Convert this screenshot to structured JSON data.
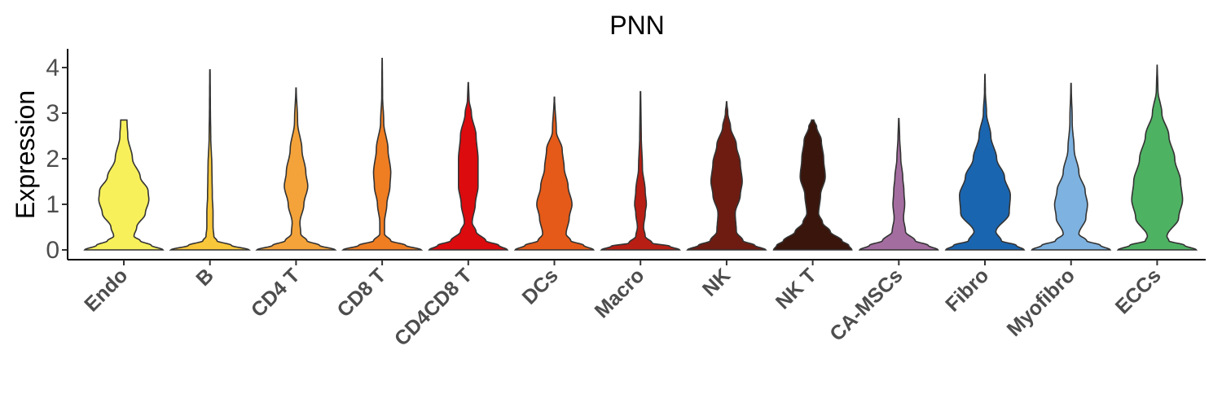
{
  "chart_data": {
    "type": "violin",
    "title": "PNN",
    "ylabel": "Expression",
    "xlabel": "",
    "ylim": [
      -0.2,
      4.4
    ],
    "yticks": [
      "0",
      "1",
      "2",
      "3",
      "4"
    ],
    "grid": false,
    "legend": "none",
    "categories": [
      "Endo",
      "B",
      "CD4 T",
      "CD8 T",
      "CD4CD8 T",
      "DCs",
      "Macro",
      "NK",
      "NK T",
      "CA-MSCs",
      "Fibro",
      "Myofibro",
      "ECCs"
    ],
    "series": [
      {
        "category": "Endo",
        "color": "#F7F05A",
        "max": 2.85,
        "profile": [
          [
            0,
            1.0
          ],
          [
            0.1,
            0.7
          ],
          [
            0.2,
            0.42
          ],
          [
            0.3,
            0.26
          ],
          [
            0.5,
            0.33
          ],
          [
            0.8,
            0.55
          ],
          [
            1.1,
            0.64
          ],
          [
            1.3,
            0.62
          ],
          [
            1.6,
            0.42
          ],
          [
            2.0,
            0.22
          ],
          [
            2.5,
            0.1
          ],
          [
            2.85,
            0.08
          ]
        ]
      },
      {
        "category": "B",
        "color": "#F9C73A",
        "max": 3.95,
        "profile": [
          [
            0,
            1.0
          ],
          [
            0.1,
            0.55
          ],
          [
            0.2,
            0.18
          ],
          [
            0.3,
            0.1
          ],
          [
            0.5,
            0.08
          ],
          [
            0.8,
            0.08
          ],
          [
            1.2,
            0.06
          ],
          [
            1.8,
            0.05
          ],
          [
            2.5,
            0.02
          ],
          [
            3.2,
            0.01
          ],
          [
            3.95,
            0.005
          ]
        ]
      },
      {
        "category": "CD4 T",
        "color": "#F4A33A",
        "max": 3.55,
        "profile": [
          [
            0,
            1.0
          ],
          [
            0.1,
            0.6
          ],
          [
            0.2,
            0.28
          ],
          [
            0.35,
            0.12
          ],
          [
            0.6,
            0.1
          ],
          [
            1.0,
            0.2
          ],
          [
            1.4,
            0.3
          ],
          [
            1.7,
            0.25
          ],
          [
            2.2,
            0.15
          ],
          [
            2.8,
            0.04
          ],
          [
            3.55,
            0.005
          ]
        ]
      },
      {
        "category": "CD8 T",
        "color": "#EF7D22",
        "max": 4.2,
        "profile": [
          [
            0,
            1.0
          ],
          [
            0.1,
            0.6
          ],
          [
            0.2,
            0.22
          ],
          [
            0.35,
            0.06
          ],
          [
            0.6,
            0.06
          ],
          [
            1.0,
            0.12
          ],
          [
            1.4,
            0.2
          ],
          [
            1.7,
            0.22
          ],
          [
            2.2,
            0.15
          ],
          [
            2.8,
            0.04
          ],
          [
            3.4,
            0.01
          ],
          [
            4.2,
            0.003
          ]
        ]
      },
      {
        "category": "CD4CD8 T",
        "color": "#DC0B0E",
        "max": 3.67,
        "profile": [
          [
            0,
            1.0
          ],
          [
            0.1,
            0.78
          ],
          [
            0.2,
            0.45
          ],
          [
            0.4,
            0.2
          ],
          [
            0.6,
            0.1
          ],
          [
            1.0,
            0.18
          ],
          [
            1.4,
            0.25
          ],
          [
            2.0,
            0.25
          ],
          [
            2.5,
            0.2
          ],
          [
            3.0,
            0.08
          ],
          [
            3.3,
            0.02
          ],
          [
            3.67,
            0.005
          ]
        ]
      },
      {
        "category": "DCs",
        "color": "#E55A18",
        "max": 3.35,
        "profile": [
          [
            0,
            1.0
          ],
          [
            0.1,
            0.75
          ],
          [
            0.2,
            0.42
          ],
          [
            0.35,
            0.3
          ],
          [
            0.7,
            0.38
          ],
          [
            1.0,
            0.45
          ],
          [
            1.4,
            0.35
          ],
          [
            1.8,
            0.25
          ],
          [
            2.2,
            0.2
          ],
          [
            2.6,
            0.05
          ],
          [
            3.35,
            0.005
          ]
        ]
      },
      {
        "category": "Macro",
        "color": "#B81E14",
        "max": 3.47,
        "profile": [
          [
            0,
            1.0
          ],
          [
            0.08,
            0.75
          ],
          [
            0.15,
            0.3
          ],
          [
            0.3,
            0.12
          ],
          [
            0.5,
            0.08
          ],
          [
            0.8,
            0.12
          ],
          [
            1.0,
            0.15
          ],
          [
            1.3,
            0.12
          ],
          [
            1.8,
            0.05
          ],
          [
            2.5,
            0.02
          ],
          [
            3.47,
            0.005
          ]
        ]
      },
      {
        "category": "NK",
        "color": "#6E1C12",
        "max": 3.25,
        "profile": [
          [
            0,
            1.0
          ],
          [
            0.1,
            0.72
          ],
          [
            0.2,
            0.42
          ],
          [
            0.4,
            0.25
          ],
          [
            0.8,
            0.22
          ],
          [
            1.2,
            0.35
          ],
          [
            1.5,
            0.4
          ],
          [
            1.9,
            0.35
          ],
          [
            2.3,
            0.25
          ],
          [
            2.7,
            0.1
          ],
          [
            3.0,
            0.03
          ],
          [
            3.25,
            0.005
          ]
        ]
      },
      {
        "category": "NK T",
        "color": "#3A150C",
        "max": 2.85,
        "profile": [
          [
            0,
            1.0
          ],
          [
            0.1,
            0.92
          ],
          [
            0.2,
            0.75
          ],
          [
            0.4,
            0.45
          ],
          [
            0.6,
            0.25
          ],
          [
            0.8,
            0.15
          ],
          [
            1.2,
            0.2
          ],
          [
            1.6,
            0.32
          ],
          [
            2.0,
            0.28
          ],
          [
            2.4,
            0.22
          ],
          [
            2.7,
            0.1
          ],
          [
            2.85,
            0.03
          ]
        ]
      },
      {
        "category": "CA-MSCs",
        "color": "#A46DA0",
        "max": 2.88,
        "profile": [
          [
            0,
            1.0
          ],
          [
            0.1,
            0.75
          ],
          [
            0.2,
            0.42
          ],
          [
            0.4,
            0.17
          ],
          [
            0.7,
            0.12
          ],
          [
            1.0,
            0.15
          ],
          [
            1.3,
            0.13
          ],
          [
            1.6,
            0.1
          ],
          [
            2.0,
            0.05
          ],
          [
            2.5,
            0.02
          ],
          [
            2.88,
            0.005
          ]
        ]
      },
      {
        "category": "Fibro",
        "color": "#1A65B0",
        "max": 3.85,
        "profile": [
          [
            0,
            1.0
          ],
          [
            0.1,
            0.8
          ],
          [
            0.2,
            0.42
          ],
          [
            0.4,
            0.28
          ],
          [
            0.8,
            0.62
          ],
          [
            1.2,
            0.65
          ],
          [
            1.6,
            0.5
          ],
          [
            2.0,
            0.3
          ],
          [
            2.5,
            0.15
          ],
          [
            3.0,
            0.04
          ],
          [
            3.5,
            0.01
          ],
          [
            3.85,
            0.003
          ]
        ]
      },
      {
        "category": "Myofibro",
        "color": "#7EB2E0",
        "max": 3.65,
        "profile": [
          [
            0,
            1.0
          ],
          [
            0.1,
            0.75
          ],
          [
            0.2,
            0.4
          ],
          [
            0.35,
            0.2
          ],
          [
            0.7,
            0.38
          ],
          [
            1.0,
            0.42
          ],
          [
            1.3,
            0.36
          ],
          [
            1.7,
            0.2
          ],
          [
            2.2,
            0.08
          ],
          [
            2.8,
            0.03
          ],
          [
            3.65,
            0.005
          ]
        ]
      },
      {
        "category": "ECCs",
        "color": "#4EB263",
        "max": 4.05,
        "profile": [
          [
            0,
            1.0
          ],
          [
            0.1,
            0.7
          ],
          [
            0.2,
            0.3
          ],
          [
            0.3,
            0.25
          ],
          [
            0.7,
            0.55
          ],
          [
            1.1,
            0.65
          ],
          [
            1.5,
            0.6
          ],
          [
            2.0,
            0.45
          ],
          [
            2.5,
            0.3
          ],
          [
            3.0,
            0.12
          ],
          [
            3.5,
            0.02
          ],
          [
            4.05,
            0.003
          ]
        ]
      }
    ]
  }
}
